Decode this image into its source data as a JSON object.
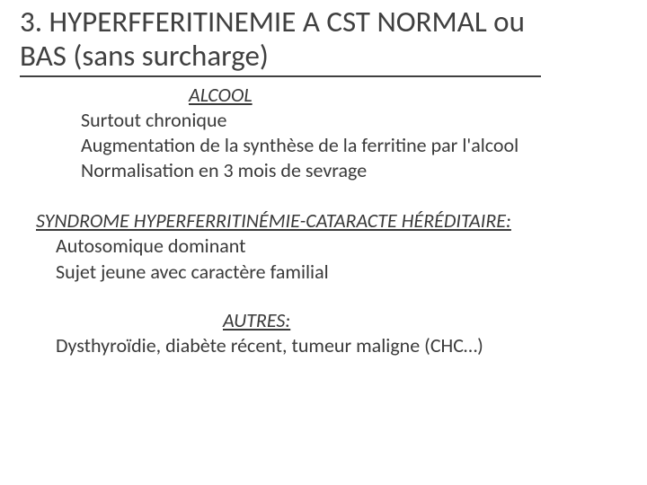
{
  "colors": {
    "text": "#3a3a3a",
    "title": "#404040",
    "underline": "#404040",
    "background": "#ffffff"
  },
  "typography": {
    "title_fontsize_pt": 25,
    "body_fontsize_pt": 16,
    "heading_style": "italic underline",
    "font_family": "Calibri"
  },
  "title": "3. HYPERFFERITINEMIE A CST NORMAL ou BAS (sans surcharge)",
  "sections": [
    {
      "heading": "ALCOOL",
      "lines": [
        "Surtout chronique",
        "Augmentation de la synthèse de la ferritine par l'alcool",
        "Normalisation en 3 mois de sevrage"
      ]
    },
    {
      "heading": "SYNDROME HYPERFERRITINÉMIE-CATARACTE HÉRÉDITAIRE:",
      "lines": [
        "Autosomique dominant",
        "Sujet jeune avec caractère familial"
      ]
    },
    {
      "heading": "AUTRES:",
      "lines": [
        "Dysthyroïdie, diabète récent, tumeur maligne (CHC…)"
      ]
    }
  ]
}
